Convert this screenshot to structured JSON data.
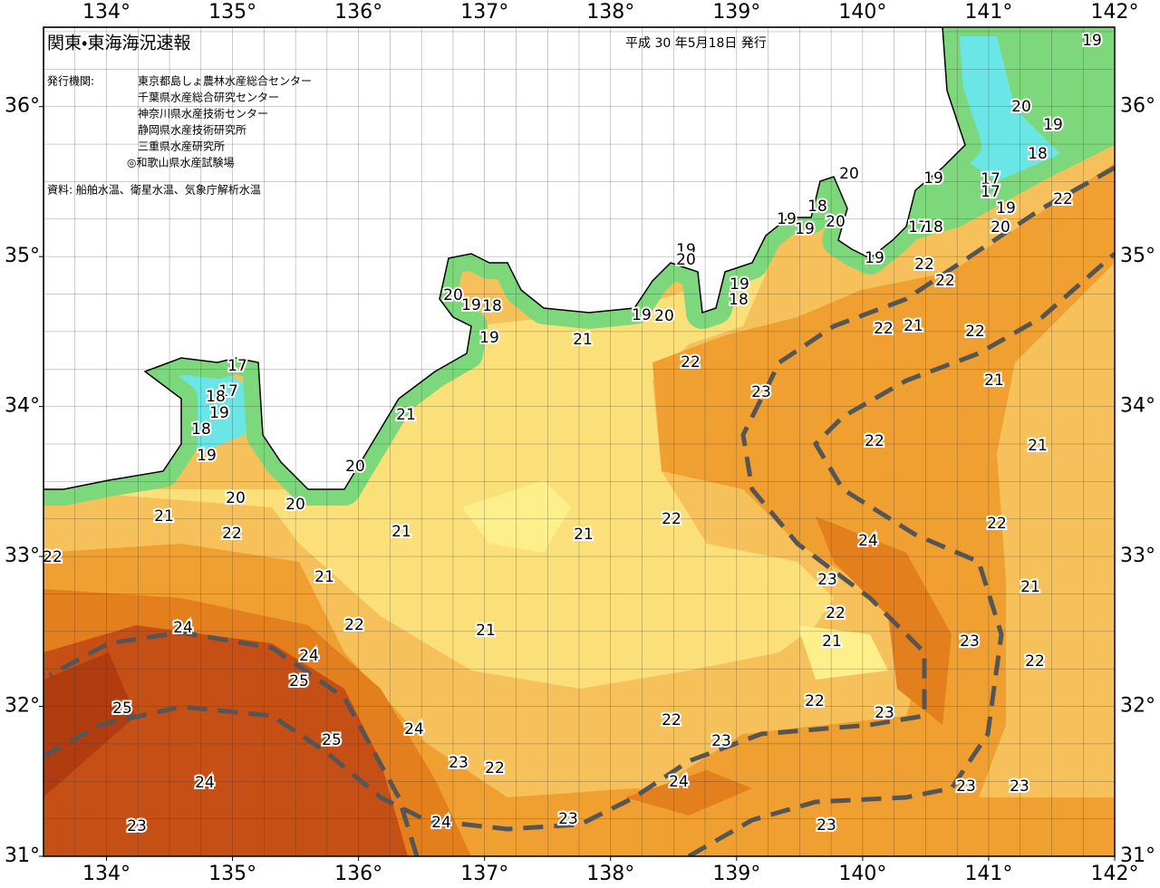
{
  "header": {
    "title": "関東・東海海況速報",
    "date": "平成 30 年5月18日 発行",
    "issuers_label": "発行機関:",
    "issuers": [
      "東京都島しょ農林水産総合センター",
      "千葉県水産総合研究センター",
      "神奈川県水産技術センター",
      "静岡県水産技術研究所",
      "三重県水産研究所",
      "◎和歌山県水産試験場"
    ],
    "source": "資料: 船舶水温、衛星水温、気象庁解析水温"
  },
  "map": {
    "xlim": [
      133.5,
      142
    ],
    "ylim": [
      31,
      36.53
    ],
    "xticks": [
      {
        "value": 134,
        "label": "134°"
      },
      {
        "value": 135,
        "label": "135°"
      },
      {
        "value": 136,
        "label": "136°"
      },
      {
        "value": 137,
        "label": "137°"
      },
      {
        "value": 138,
        "label": "138°"
      },
      {
        "value": 139,
        "label": "139°"
      },
      {
        "value": 140,
        "label": "140°"
      },
      {
        "value": 141,
        "label": "141°"
      },
      {
        "value": 142,
        "label": "142°"
      }
    ],
    "yticks": [
      {
        "value": 31,
        "label": "31°"
      },
      {
        "value": 32,
        "label": "32°"
      },
      {
        "value": 33,
        "label": "33°"
      },
      {
        "value": 34,
        "label": "34°"
      },
      {
        "value": 35,
        "label": "35°"
      },
      {
        "value": 36,
        "label": "36°"
      }
    ],
    "contour_labels": [
      19,
      20,
      19,
      18,
      20,
      19,
      17,
      17,
      19,
      22,
      18,
      19,
      19,
      20,
      17,
      18,
      20,
      19,
      22,
      22,
      19,
      20,
      19,
      18,
      20,
      19,
      18,
      19,
      20,
      19,
      21,
      22,
      21,
      22,
      22,
      23,
      21,
      17,
      17,
      18,
      19,
      18,
      19,
      21,
      22,
      21,
      20,
      20,
      20,
      21,
      21,
      21,
      22,
      22,
      24,
      22,
      22,
      21,
      23,
      21,
      22,
      21,
      22,
      24,
      21,
      23,
      22,
      24,
      25,
      22,
      23,
      25,
      22,
      23,
      24,
      25,
      23,
      22,
      24,
      24,
      23,
      23,
      23,
      24,
      23,
      23
    ]
  }
}
